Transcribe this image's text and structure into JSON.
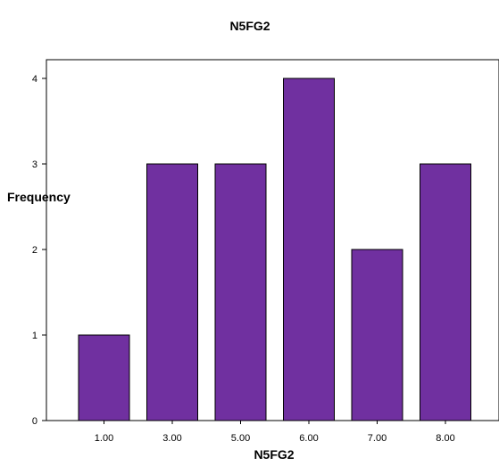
{
  "chart_data": {
    "type": "bar",
    "title": "N5FG2",
    "xlabel": "N5FG2",
    "ylabel": "Frequency",
    "categories": [
      "1.00",
      "3.00",
      "5.00",
      "6.00",
      "7.00",
      "8.00"
    ],
    "values": [
      1,
      3,
      3,
      4,
      2,
      3
    ],
    "ylim": [
      0,
      4
    ],
    "yticks": [
      "0",
      "1",
      "2",
      "3",
      "4"
    ],
    "grid": false,
    "legend": "none",
    "bar_color": "#7030a0",
    "bar_edge_color": "#000000"
  }
}
